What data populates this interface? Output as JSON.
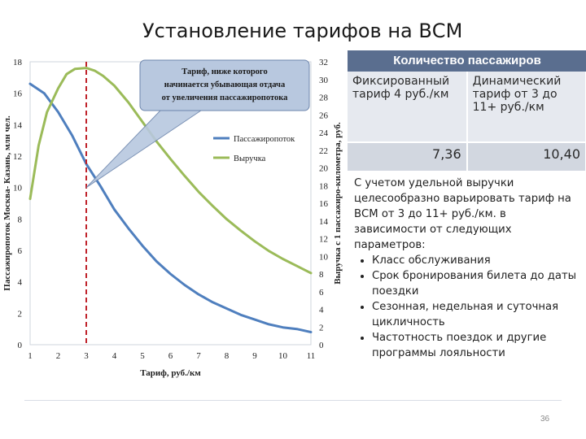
{
  "slide": {
    "title": "Установление тарифов на ВСМ",
    "page_number": "36"
  },
  "chart_data": {
    "type": "line",
    "xlabel": "Тариф, руб./км",
    "ylabel_left": "Пассажиропоток Москва- Казань, млн чел.",
    "ylabel_right": "Выручка с 1 пассажиро-километра, руб.",
    "x_ticks": [
      1,
      2,
      3,
      4,
      5,
      6,
      7,
      8,
      9,
      10,
      11
    ],
    "y_left_ticks": [
      0,
      2,
      4,
      6,
      8,
      10,
      12,
      14,
      16,
      18
    ],
    "y_right_ticks": [
      0,
      2,
      4,
      6,
      8,
      10,
      12,
      14,
      16,
      18,
      20,
      22,
      24,
      26,
      28,
      30,
      32
    ],
    "xlim": [
      1,
      11
    ],
    "ylim_left": [
      0,
      18
    ],
    "ylim_right": [
      0,
      32
    ],
    "series": [
      {
        "name": "Пассажиропоток",
        "axis": "left",
        "color": "#4f7fbe",
        "x": [
          1,
          1.5,
          2,
          2.5,
          3,
          3.5,
          4,
          4.5,
          5,
          5.5,
          6,
          6.5,
          7,
          7.5,
          8,
          8.5,
          9,
          9.5,
          10,
          10.5,
          11
        ],
        "y": [
          16.6,
          16.0,
          14.8,
          13.3,
          11.5,
          10.1,
          8.6,
          7.4,
          6.3,
          5.3,
          4.5,
          3.8,
          3.2,
          2.7,
          2.3,
          1.9,
          1.6,
          1.3,
          1.1,
          1.0,
          0.8
        ]
      },
      {
        "name": "Выручка",
        "axis": "right",
        "color": "#9bbb59",
        "x": [
          1,
          1.3,
          1.6,
          2,
          2.3,
          2.6,
          3,
          3.3,
          3.6,
          4,
          4.5,
          5,
          5.5,
          6,
          6.5,
          7,
          7.5,
          8,
          8.5,
          9,
          9.5,
          10,
          10.5,
          11
        ],
        "y": [
          16.5,
          22.5,
          26.3,
          29.0,
          30.6,
          31.2,
          31.3,
          31.0,
          30.4,
          29.3,
          27.4,
          25.2,
          23.0,
          21.0,
          19.1,
          17.3,
          15.7,
          14.2,
          12.9,
          11.7,
          10.6,
          9.7,
          8.9,
          8.1
        ]
      }
    ],
    "reference_line": {
      "x": 3,
      "color": "#c0232b",
      "style": "dashed"
    },
    "annotation": {
      "lines": [
        "Тариф, ниже которого",
        "начинается убывающая отдача",
        "от увеличения пассажиропотока"
      ],
      "anchor_x": 3,
      "anchor_y_left": 10
    },
    "legend_position": "middle-right",
    "grid": false
  },
  "panel": {
    "header": "Количество пассажиров",
    "col1_header": "Фиксированный тариф 4 руб./км",
    "col2_header": "Динамический тариф от 3 до 11+ руб./км",
    "col1_value": "7,36",
    "col2_value": "10,40",
    "note_intro": "С учетом удельной выручки целесообразно варьировать тариф на ВСМ от 3 до 11+ руб./км. в зависимости от следующих параметров:",
    "bullets": [
      "Класс обслуживания",
      "Срок бронирования билета до даты поездки",
      "Сезонная, недельная и суточная цикличность",
      "Частотность поездок и другие программы лояльности"
    ]
  }
}
